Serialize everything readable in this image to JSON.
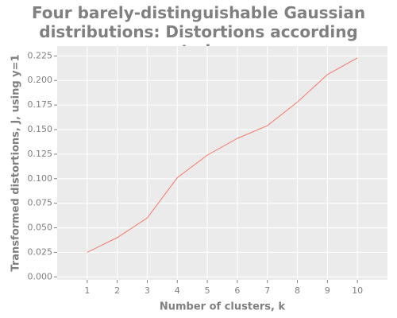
{
  "chart_data": {
    "type": "line",
    "title": "Four barely-distinguishable Gaussian distributions: Distortions according to k",
    "x_label": "Number of clusters, k",
    "y_label": "Transformed distortions, J, using y=1",
    "x": [
      1,
      2,
      3,
      4,
      5,
      6,
      7,
      8,
      9,
      10
    ],
    "series": [
      {
        "name": "J",
        "color": "#f8766d",
        "values": [
          0.025,
          0.04,
          0.06,
          0.101,
          0.124,
          0.141,
          0.154,
          0.178,
          0.206,
          0.223
        ]
      }
    ],
    "xlim": [
      0,
      11
    ],
    "ylim": [
      -0.003,
      0.235
    ],
    "xticks": [
      1,
      2,
      3,
      4,
      5,
      6,
      7,
      8,
      9,
      10
    ],
    "yticks": [
      {
        "value": 0,
        "label": "0.000"
      },
      0.025,
      {
        "value": 0.05,
        "label": "0.050"
      },
      0.075,
      {
        "value": 0.1,
        "label": "0.100"
      },
      0.125,
      {
        "value": 0.15,
        "label": "0.150"
      },
      0.175,
      {
        "value": 0.2,
        "label": "0.200"
      },
      0.225
    ],
    "grid": true
  }
}
